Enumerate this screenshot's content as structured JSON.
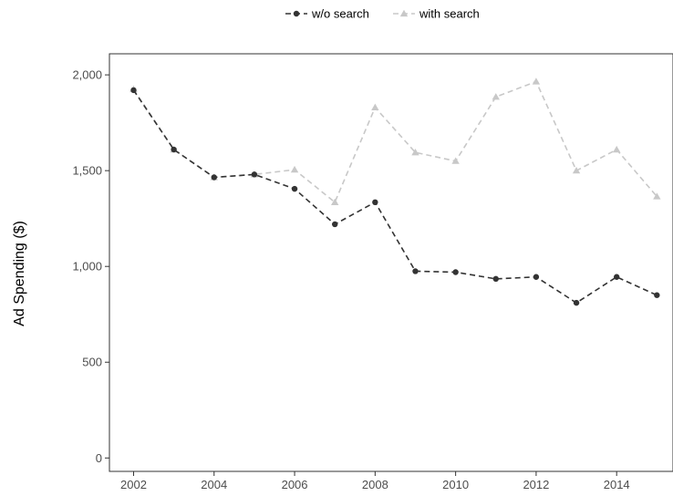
{
  "chart_data": {
    "type": "line",
    "xlabel": "",
    "ylabel": "Ad Spending ($)",
    "x": [
      2002,
      2003,
      2004,
      2005,
      2006,
      2007,
      2008,
      2009,
      2010,
      2011,
      2012,
      2013,
      2014,
      2015
    ],
    "x_ticks": [
      "2002",
      "2004",
      "2006",
      "2008",
      "2010",
      "2012",
      "2014"
    ],
    "y_ticks": [
      "0",
      "500",
      "1,000",
      "1,500",
      "2,000"
    ],
    "ylim": [
      -70,
      2110
    ],
    "xlim": [
      2001.4,
      2015.4
    ],
    "grid": false,
    "legend_position": "top",
    "series": [
      {
        "name": "w/o search",
        "color": "#333333",
        "marker": "circle",
        "line_style": "dashed",
        "values": [
          1920,
          1610,
          1465,
          1480,
          1405,
          1220,
          1335,
          975,
          970,
          935,
          945,
          810,
          945,
          850
        ]
      },
      {
        "name": "with search",
        "color": "#c8c8c8",
        "marker": "triangle",
        "line_style": "dashed",
        "values": [
          1925,
          1610,
          1465,
          1480,
          1505,
          1335,
          1830,
          1595,
          1550,
          1885,
          1965,
          1500,
          1610,
          1365
        ]
      }
    ]
  }
}
